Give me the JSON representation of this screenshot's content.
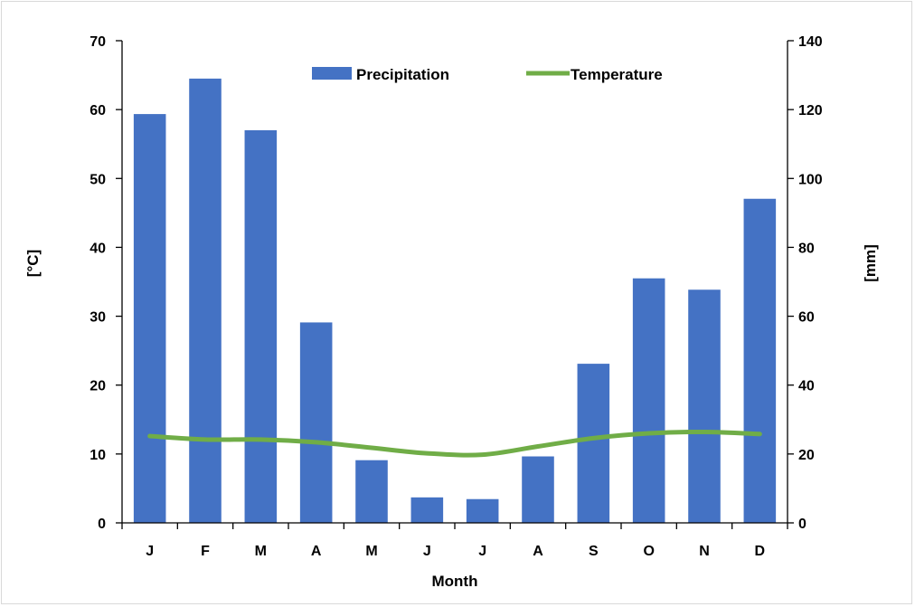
{
  "chart_data": {
    "type": "bar",
    "categories": [
      "J",
      "F",
      "M",
      "A",
      "M",
      "J",
      "J",
      "A",
      "S",
      "O",
      "N",
      "D"
    ],
    "series": [
      {
        "name": "Precipitation",
        "type": "bar",
        "axis": "right",
        "color": "#4472c4",
        "values": [
          118.7,
          129.0,
          114.0,
          58.2,
          18.2,
          7.4,
          6.9,
          19.3,
          46.2,
          71.0,
          67.7,
          94.1
        ]
      },
      {
        "name": "Temperature",
        "type": "line",
        "axis": "left",
        "color": "#70ad47",
        "values": [
          12.6,
          12.1,
          12.1,
          11.7,
          10.9,
          10.1,
          9.9,
          11.1,
          12.3,
          13.0,
          13.2,
          12.9
        ]
      }
    ],
    "xlabel": "Month",
    "ylabel_left": "[°C]",
    "ylabel_right": "[mm]",
    "ylim_left": [
      0,
      70
    ],
    "ylim_right": [
      0,
      140
    ],
    "yticks_left": [
      "0",
      "10",
      "20",
      "30",
      "40",
      "50",
      "60",
      "70"
    ],
    "yticks_right": [
      "0",
      "20",
      "40",
      "60",
      "80",
      "100",
      "120",
      "140"
    ],
    "grid": false,
    "legend": "top-center"
  }
}
